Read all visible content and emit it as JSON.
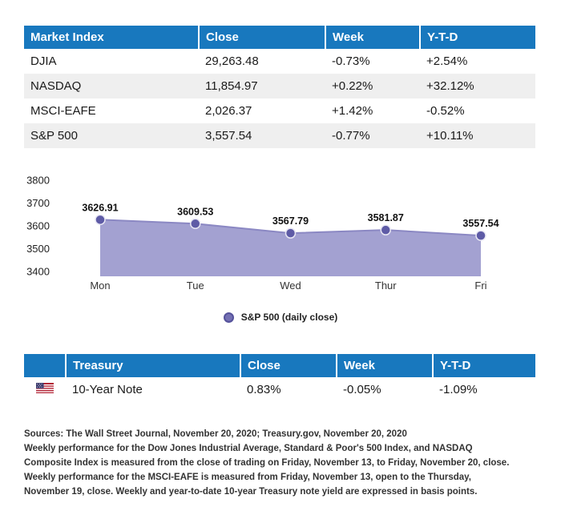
{
  "colors": {
    "header_bg": "#1878be",
    "row_alt_bg": "#efefef",
    "chart_area": "#a3a1d1",
    "chart_line": "#8b88c3",
    "chart_marker": "#5e5ba6"
  },
  "market_table": {
    "headers": [
      "Market Index",
      "Close",
      "Week",
      "Y-T-D"
    ],
    "rows": [
      {
        "name": "DJIA",
        "close": "29,263.48",
        "week": "-0.73%",
        "ytd": "+2.54%"
      },
      {
        "name": "NASDAQ",
        "close": "11,854.97",
        "week": "+0.22%",
        "ytd": "+32.12%"
      },
      {
        "name": "MSCI-EAFE",
        "close": "2,026.37",
        "week": "+1.42%",
        "ytd": "-0.52%"
      },
      {
        "name": "S&P 500",
        "close": "3,557.54",
        "week": "-0.77%",
        "ytd": "+10.11%"
      }
    ]
  },
  "chart_data": {
    "type": "area",
    "title": "",
    "xlabel": "",
    "ylabel": "",
    "series_name": "S&P 500",
    "legend_label": "S&P 500 (daily close)",
    "x": [
      "Mon",
      "Tue",
      "Wed",
      "Thur",
      "Fri"
    ],
    "values": [
      3626.91,
      3609.53,
      3567.79,
      3581.87,
      3557.54
    ],
    "point_labels": [
      "3626.91",
      "3609.53",
      "3567.79",
      "3581.87",
      "3557.54"
    ],
    "ylim": [
      3400,
      3800
    ],
    "yticks": [
      3400,
      3500,
      3600,
      3700,
      3800
    ],
    "grid": false,
    "legend_position": "bottom",
    "colors": {
      "area": "#a3a1d1",
      "line": "#8b88c3",
      "marker": "#5e5ba6"
    }
  },
  "treasury_table": {
    "headers": [
      "",
      "Treasury",
      "Close",
      "Week",
      "Y-T-D"
    ],
    "row": {
      "name": "10-Year Note",
      "close": "0.83%",
      "week": "-0.05%",
      "ytd": "-1.09%"
    }
  },
  "footer": {
    "lines": [
      "Sources: The Wall Street Journal, November 20, 2020; Treasury.gov, November 20, 2020",
      "Weekly performance for the Dow Jones Industrial Average, Standard & Poor's 500 Index, and NASDAQ",
      "Composite Index is measured from the close of trading on Friday, November 13, to Friday, November 20, close.",
      "Weekly performance for the MSCI-EAFE is measured from Friday, November 13, open to the Thursday,",
      "November 19, close. Weekly and year-to-date 10-year Treasury note yield are expressed in basis points."
    ]
  }
}
